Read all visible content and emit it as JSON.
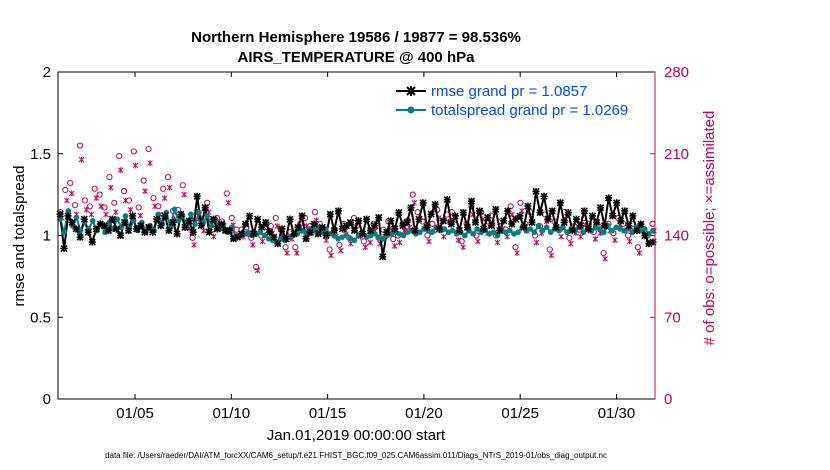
{
  "colors": {
    "rmse": "#000000",
    "spread": "#008080",
    "obs": "#c8005a",
    "legend_text": "#0047ff"
  },
  "chart_data": {
    "type": "line",
    "title": "Northern Hemisphere 19586 / 19877 = 98.536%",
    "subtitle": "AIRS_TEMPERATURE @ 400 hPa",
    "xlabel": "Jan.01,2019 00:00:00 start",
    "ylabel": "rmse and totalspread",
    "ylabel_right": "# of obs: o=possible; ×=assimilated",
    "footer": "data file: /Users/raeder/DAI/ATM_forcXX/CAM6_setup/f.e21.FHIST_BGC.f09_025.CAM6assim.011/Diags_NTrS_2019-01/obs_diag_output.nc",
    "xlim": [
      1,
      32
    ],
    "xticks": [
      5,
      10,
      15,
      20,
      25,
      30
    ],
    "xtick_labels": [
      "01/05",
      "01/10",
      "01/15",
      "01/20",
      "01/25",
      "01/30"
    ],
    "ylim": [
      0,
      2
    ],
    "yticks": [
      0,
      0.5,
      1,
      1.5,
      2
    ],
    "ytick_labels": [
      "0",
      "0.5",
      "1",
      "1.5",
      "2"
    ],
    "ylim_right": [
      0,
      280
    ],
    "yticks_right": [
      0,
      70,
      140,
      210,
      280
    ],
    "ytick_labels_right": [
      "0",
      "70",
      "140",
      "210",
      "280"
    ],
    "legend": [
      {
        "name": "rmse grand pr = 1.0857"
      },
      {
        "name": "totalspread grand pr = 1.0269"
      }
    ],
    "series": [
      {
        "name": "rmse",
        "values": [
          1.13,
          0.92,
          1.12,
          1.08,
          1.04,
          0.99,
          1.1,
          1.02,
          0.96,
          1.04,
          1.07,
          1.06,
          1.03,
          1.1,
          1.04,
          1.0,
          1.08,
          1.03,
          1.12,
          1.04,
          1.06,
          1.02,
          1.05,
          1.02,
          1.1,
          1.06,
          1.12,
          1.03,
          1.08,
          1.01,
          1.13,
          1.05,
          1.09,
          1.02,
          1.24,
          1.06,
          1.17,
          1.02,
          1.1,
          1.04,
          1.07,
          1.03,
          1.03,
          0.98,
          0.99,
          1.01,
          1.07,
          1.12,
          1.01,
          1.1,
          1.05,
          1.08,
          1.02,
          0.99,
          0.95,
          1.04,
          0.98,
          1.1,
          1.01,
          1.05,
          1.12,
          0.98,
          1.02,
          1.07,
          1.01,
          1.05,
          1.0,
          1.13,
          1.03,
          1.15,
          1.04,
          1.06,
          1.08,
          1.03,
          1.09,
          1.01,
          1.1,
          1.03,
          1.06,
          1.11,
          0.87,
          1.02,
          1.09,
          1.04,
          1.14,
          1.06,
          1.08,
          1.17,
          1.03,
          1.1,
          1.2,
          1.05,
          1.13,
          1.19,
          1.04,
          1.09,
          1.22,
          1.07,
          1.12,
          1.03,
          1.14,
          1.05,
          1.21,
          1.08,
          1.15,
          1.04,
          1.11,
          1.06,
          1.16,
          1.03,
          1.09,
          1.15,
          1.07,
          1.1,
          1.12,
          1.05,
          1.18,
          1.08,
          1.27,
          1.14,
          1.24,
          1.1,
          1.15,
          1.05,
          1.2,
          1.08,
          1.14,
          1.03,
          1.1,
          1.06,
          1.15,
          1.04,
          1.12,
          1.08,
          1.17,
          1.06,
          1.23,
          1.12,
          1.2,
          1.09,
          1.15,
          1.06,
          1.12,
          1.03,
          1.07,
          1.0,
          0.95,
          0.96
        ]
      },
      {
        "name": "totalspread",
        "values": [
          1.1,
          1.02,
          1.15,
          1.06,
          1.11,
          1.03,
          1.08,
          1.04,
          1.09,
          1.03,
          1.07,
          1.02,
          1.08,
          1.04,
          1.1,
          1.05,
          1.12,
          1.04,
          1.09,
          1.03,
          1.08,
          1.02,
          1.06,
          1.03,
          1.13,
          1.07,
          1.14,
          1.05,
          1.16,
          1.09,
          1.12,
          1.06,
          1.13,
          1.07,
          1.14,
          1.08,
          1.12,
          1.06,
          1.1,
          1.04,
          1.07,
          1.02,
          1.05,
          0.99,
          1.0,
          1.01,
          1.02,
          1.0,
          1.01,
          1.02,
          1.0,
          0.98,
          0.97,
          0.96,
          0.98,
          0.97,
          0.99,
          1.0,
          1.01,
          1.03,
          1.02,
          1.04,
          1.03,
          1.05,
          1.02,
          1.04,
          1.01,
          1.0,
          0.98,
          0.99,
          1.0,
          0.98,
          0.97,
          1.0,
          1.01,
          0.99,
          1.0,
          1.01,
          0.99,
          0.98,
          1.0,
          1.01,
          1.02,
          1.01,
          1.0,
          1.02,
          1.03,
          1.01,
          1.02,
          1.04,
          1.03,
          1.02,
          1.05,
          1.03,
          1.04,
          1.02,
          1.03,
          1.01,
          1.02,
          1.0,
          1.03,
          1.01,
          1.04,
          1.02,
          1.03,
          1.01,
          1.02,
          1.0,
          1.04,
          1.02,
          1.03,
          1.01,
          1.02,
          1.05,
          1.03,
          1.04,
          1.02,
          1.06,
          1.03,
          1.05,
          1.02,
          1.04,
          1.03,
          1.05,
          1.02,
          1.04,
          1.03,
          1.05,
          1.02,
          1.04,
          1.03,
          1.05,
          1.04,
          1.02,
          1.06,
          1.03,
          1.05,
          1.04,
          1.03,
          1.04,
          1.02,
          1.05,
          1.03,
          1.04,
          1.01,
          1.03
        ]
      },
      {
        "name": "obs possible",
        "values": [
          160,
          179,
          185,
          166,
          217,
          170,
          165,
          180,
          175,
          164,
          190,
          168,
          208,
          178,
          170,
          212,
          164,
          187,
          214,
          172,
          165,
          180,
          190,
          161,
          162,
          183,
          152,
          138,
          160,
          150,
          168,
          145,
          155,
          152,
          176,
          155,
          145,
          145,
          147,
          138,
          113,
          140,
          150,
          148,
          155,
          145,
          130,
          143,
          130,
          150,
          155,
          148,
          160,
          150,
          142,
          128,
          145,
          132,
          150,
          138,
          155,
          145,
          135,
          140,
          150,
          138,
          145,
          152,
          137,
          140,
          150,
          153,
          175,
          160,
          152,
          140,
          150,
          162,
          145,
          158,
          160,
          142,
          135,
          150,
          165,
          140,
          160,
          148,
          157,
          140,
          152,
          145,
          165,
          130,
          168,
          150,
          160,
          140,
          148,
          158,
          128,
          152,
          145,
          160,
          138,
          148,
          145,
          155,
          150,
          143,
          148,
          125,
          150,
          142,
          155,
          150,
          140,
          150,
          130,
          145,
          140,
          150
        ],
        "marker": "o"
      },
      {
        "name": "obs assimilated",
        "values": [
          155,
          170,
          176,
          158,
          205,
          162,
          158,
          172,
          165,
          158,
          181,
          160,
          196,
          170,
          162,
          200,
          157,
          178,
          202,
          165,
          158,
          172,
          181,
          154,
          156,
          175,
          146,
          132,
          154,
          144,
          160,
          139,
          149,
          146,
          168,
          149,
          140,
          139,
          141,
          132,
          110,
          135,
          144,
          142,
          148,
          140,
          125,
          137,
          125,
          144,
          148,
          142,
          153,
          144,
          136,
          123,
          139,
          127,
          144,
          133,
          148,
          139,
          130,
          134,
          144,
          133,
          139,
          146,
          131,
          134,
          144,
          147,
          168,
          154,
          146,
          135,
          144,
          155,
          139,
          152,
          153,
          136,
          130,
          144,
          158,
          135,
          154,
          142,
          151,
          134,
          146,
          139,
          158,
          125,
          161,
          144,
          154,
          134,
          142,
          152,
          123,
          146,
          139,
          154,
          133,
          142,
          139,
          149,
          144,
          137,
          142,
          120,
          144,
          136,
          149,
          144,
          135,
          144,
          125,
          139,
          134,
          144
        ],
        "marker": "x"
      }
    ]
  }
}
